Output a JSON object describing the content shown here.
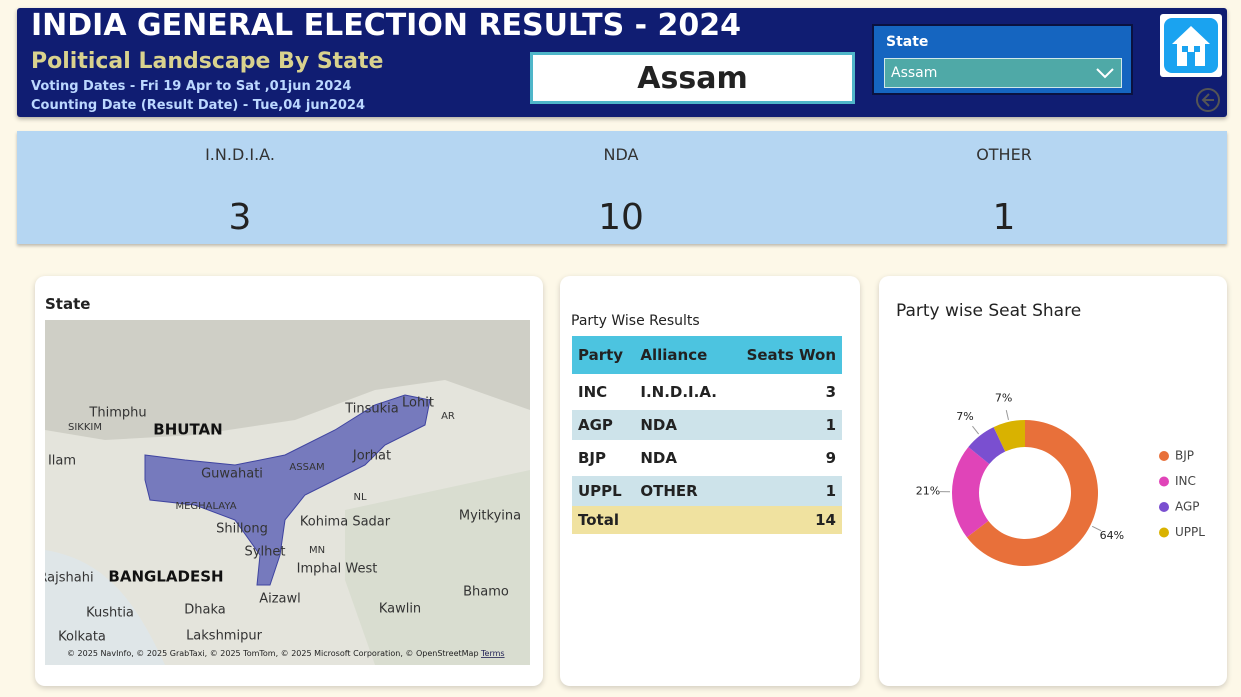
{
  "header": {
    "title": "INDIA GENERAL ELECTION RESULTS - 2024",
    "subtitle": "Political Landscape By State",
    "voting_dates": "Voting Dates - Fri 19 Apr to Sat ,01jun 2024",
    "counting_date": "Counting Date (Result Date) - Tue,04 jun2024",
    "selected_state": "Assam",
    "slicer": {
      "label": "State",
      "value": "Assam"
    }
  },
  "kpis": [
    {
      "label": "I.N.D.I.A.",
      "value": "3"
    },
    {
      "label": "NDA",
      "value": "10"
    },
    {
      "label": "OTHER",
      "value": "1"
    }
  ],
  "map": {
    "title": "State",
    "labels": [
      "BHUTAN",
      "Thimphu",
      "SIKKIM",
      "Guwahati",
      "ASSAM",
      "Tinsukia",
      "Jorhat",
      "Lohit",
      "AR",
      "NL",
      "MEGHALAYA",
      "Shillong",
      "Kohima Sadar",
      "MN",
      "Sylhet",
      "Imphal West",
      "Myitkyina",
      "BANGLADESH",
      "Rajshahi",
      "Aizawl",
      "Bhamo",
      "Dhaka",
      "Kushtia",
      "Kawlin",
      "Lakshmipur",
      "Kolkata",
      "Ilam"
    ],
    "attribution": "© 2025 NavInfo, © 2025 GrabTaxi, © 2025 TomTom, © 2025 Microsoft Corporation, © OpenStreetMap",
    "terms": "Terms"
  },
  "table": {
    "title": "Party Wise Results",
    "columns": [
      "Party",
      "Alliance",
      "Seats Won"
    ],
    "rows": [
      [
        "INC",
        "I.N.D.I.A.",
        "3"
      ],
      [
        "AGP",
        "NDA",
        "1"
      ],
      [
        "BJP",
        "NDA",
        "9"
      ],
      [
        "UPPL",
        "OTHER",
        "1"
      ]
    ],
    "total": [
      "Total",
      "14"
    ]
  },
  "chart_data": {
    "type": "pie",
    "title": "Party wise Seat Share",
    "categories": [
      "BJP",
      "INC",
      "AGP",
      "UPPL"
    ],
    "values": [
      64,
      21,
      7,
      7
    ],
    "value_labels": [
      "64%",
      "21%",
      "7%",
      "7%"
    ],
    "colors": [
      "#e8703a",
      "#e044b8",
      "#7a4fd0",
      "#d9b200"
    ],
    "donut": true,
    "legend": "right"
  }
}
